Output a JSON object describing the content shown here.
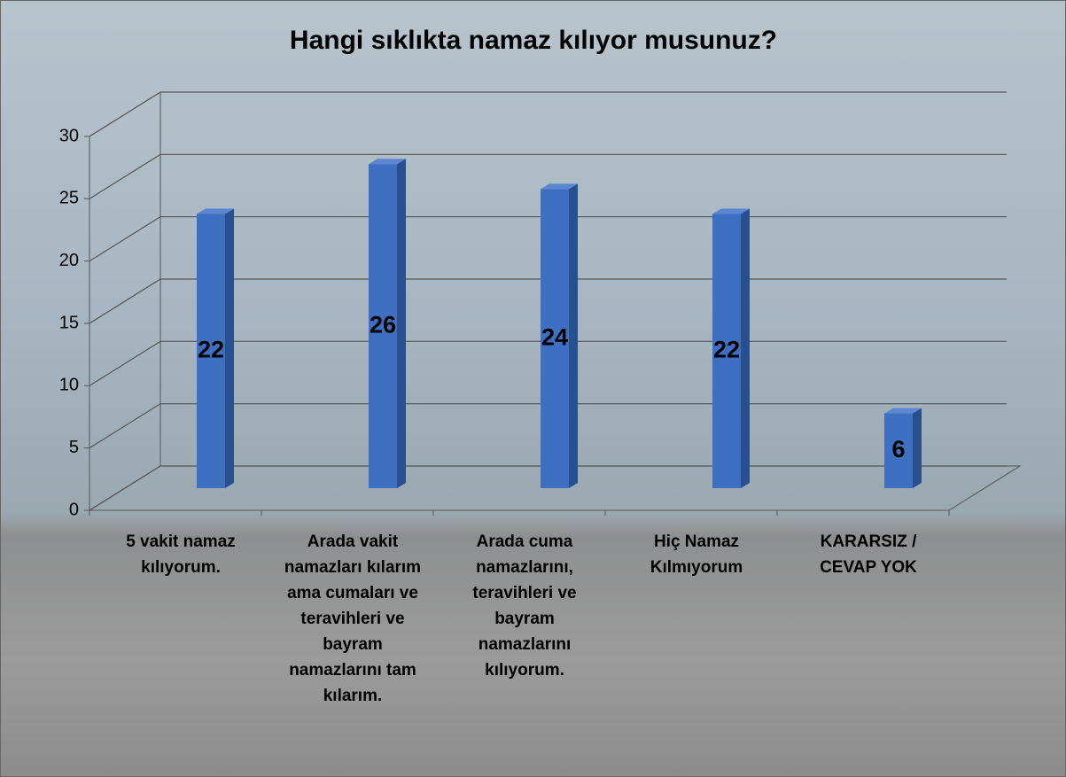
{
  "chart_data": {
    "type": "bar3d",
    "title": "Hangi sıklıkta namaz kılıyor musunuz?",
    "categories": [
      "5 vakit namaz kılıyorum.",
      "Arada vakit namazları kılarım ama cumaları ve teravihleri ve bayram namazlarını tam kılarım.",
      "Arada cuma namazlarını, teravihleri  ve bayram namazlarını kılıyorum.",
      "Hiç Namaz Kılmıyorum",
      "KARARSIZ / CEVAP YOK"
    ],
    "values": [
      22,
      26,
      24,
      22,
      6
    ],
    "color": "#3f6fc0",
    "ylim": [
      0,
      30
    ],
    "yticks": [
      0,
      5,
      10,
      15,
      20,
      25,
      30
    ],
    "grid": true
  }
}
